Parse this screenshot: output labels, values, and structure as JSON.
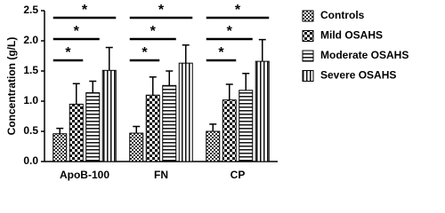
{
  "chart_data": {
    "type": "bar",
    "y_label": "Concentration (g/L)",
    "categories": [
      "ApoB-100",
      "FN",
      "CP"
    ],
    "series": [
      {
        "name": "Controls",
        "color": "#000000",
        "pattern": "checker-dense",
        "values": [
          0.46,
          0.47,
          0.5
        ],
        "errors": [
          0.09,
          0.11,
          0.12
        ]
      },
      {
        "name": "Mild OSAHS",
        "color": "#000000",
        "pattern": "checker",
        "values": [
          0.95,
          1.1,
          1.02
        ],
        "errors": [
          0.34,
          0.3,
          0.26
        ]
      },
      {
        "name": "Moderate OSAHS",
        "color": "#000000",
        "pattern": "horizontal",
        "values": [
          1.14,
          1.26,
          1.18
        ],
        "errors": [
          0.19,
          0.24,
          0.28
        ]
      },
      {
        "name": "Severe OSAHS",
        "color": "#000000",
        "pattern": "vertical",
        "values": [
          1.51,
          1.63,
          1.66
        ],
        "errors": [
          0.38,
          0.3,
          0.36
        ]
      }
    ],
    "annotations": [
      "*",
      "*",
      "*",
      "*",
      "*",
      "*",
      "*",
      "*",
      "*"
    ],
    "ylim": [
      0,
      2.5
    ],
    "yticks": [
      {
        "value": 0,
        "label": "0.0"
      },
      0.5,
      {
        "value": 1,
        "label": "1.0"
      },
      1.5,
      {
        "value": 2,
        "label": "2.0"
      },
      2.5
    ],
    "grid": false,
    "legend": "right"
  }
}
